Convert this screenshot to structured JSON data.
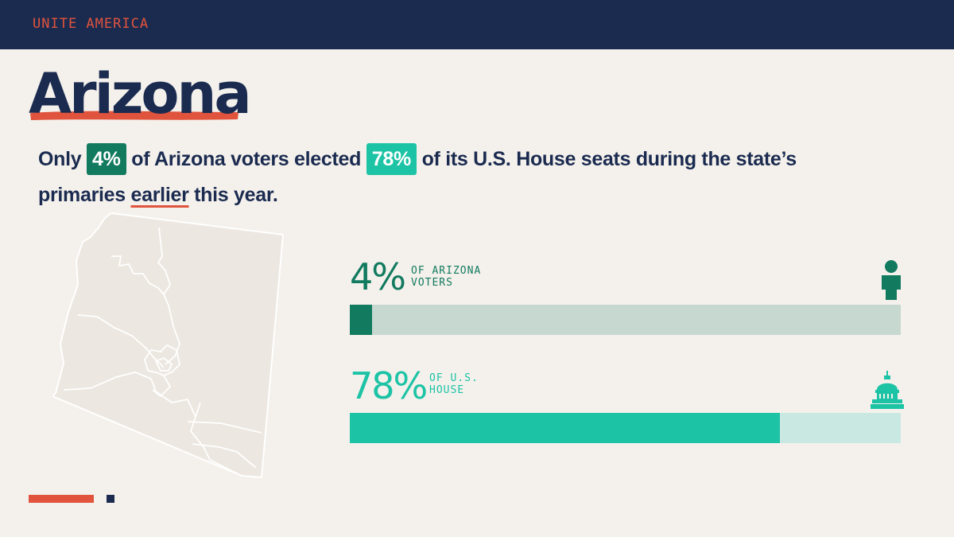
{
  "brand": "UNITE AMERICA",
  "title": "Arizona",
  "sentence": {
    "part1": "Only",
    "pct_voters": "4%",
    "part2": "of Arizona voters elected",
    "pct_house": "78%",
    "part3": "of its U.S. House seats during the state’s primaries",
    "underlined": "earlier",
    "part4": "this year."
  },
  "colors": {
    "navy": "#1b2b50",
    "red": "#e0533c",
    "dark_green": "#127a5f",
    "teal": "#1cc3a5",
    "dark_track": "#c6d8cf",
    "light_track": "#c9e8e1"
  },
  "chart_data": {
    "type": "bar",
    "orientation": "horizontal",
    "categories": [
      "OF ARIZONA VOTERS",
      "OF U.S. HOUSE"
    ],
    "values": [
      4,
      78
    ],
    "labels": [
      "4%",
      "78%"
    ],
    "label_lines": [
      [
        "OF ARIZONA",
        "VOTERS"
      ],
      [
        "OF U.S.",
        "HOUSE"
      ]
    ],
    "xlim": [
      0,
      100
    ],
    "icons": [
      "person-icon",
      "capitol-icon"
    ]
  }
}
